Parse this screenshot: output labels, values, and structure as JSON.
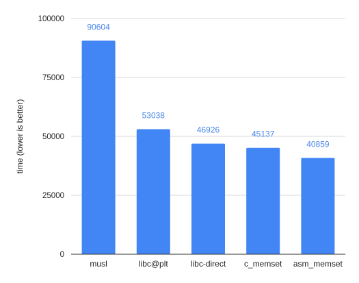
{
  "chart_data": {
    "type": "bar",
    "title": "",
    "xlabel": "",
    "ylabel": "time (lower is better)",
    "categories": [
      "musl",
      "libc@plt",
      "libc-direct",
      "c_memset",
      "asm_memset"
    ],
    "values": [
      90604,
      53038,
      46926,
      45137,
      40859
    ],
    "data_labels": [
      "90604",
      "53038",
      "46926",
      "45137",
      "40859"
    ],
    "ylim": [
      0,
      100000
    ],
    "yticks": [
      0,
      25000,
      50000,
      75000,
      100000
    ],
    "ytick_labels": [
      "0",
      "25000",
      "50000",
      "75000",
      "100000"
    ],
    "grid": true,
    "legend": "none",
    "bar_color": "#4285f4",
    "label_color": "#4a86e8",
    "grid_color": "#d9d9d9",
    "axis_color": "#333333"
  }
}
